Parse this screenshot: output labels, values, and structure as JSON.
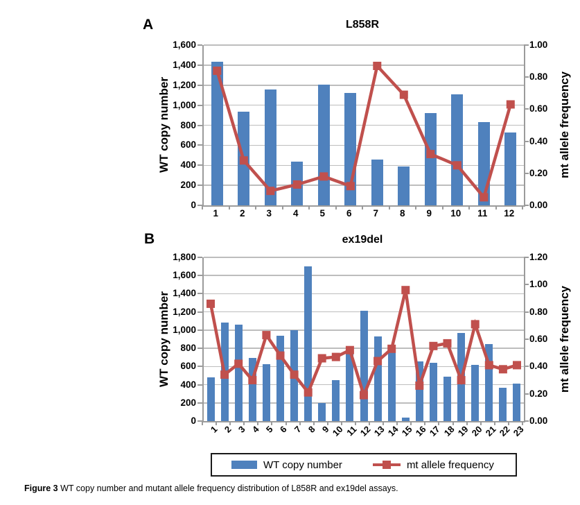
{
  "colors": {
    "bar": "#4F81BD",
    "line": "#C0504D",
    "grid": "#BDBDBD",
    "axis": "#9B9B9B"
  },
  "legend": {
    "bar_label": "WT copy number",
    "line_label": "mt allele frequency"
  },
  "caption": {
    "label": "Figure 3",
    "text": "WT copy number and mutant allele frequency distribution of L858R and ex19del assays."
  },
  "chart_data": [
    {
      "type": "bar+line",
      "panel": "A",
      "title": "L858R",
      "categories": [
        "1",
        "2",
        "3",
        "4",
        "5",
        "6",
        "7",
        "8",
        "9",
        "10",
        "11",
        "12"
      ],
      "left_axis": {
        "label": "WT copy number",
        "min": 0,
        "max": 1600,
        "step": 200
      },
      "right_axis": {
        "label": "mt allele frequency",
        "min": 0,
        "max": 1.0,
        "step": 0.2,
        "decimals": 2
      },
      "x_labels_rotated": false,
      "grid": true,
      "series": [
        {
          "name": "WT copy number",
          "type": "bar",
          "axis": "left",
          "values": [
            1435,
            935,
            1155,
            435,
            1205,
            1120,
            460,
            390,
            920,
            1110,
            830,
            725
          ]
        },
        {
          "name": "mt allele frequency",
          "type": "line",
          "axis": "right",
          "values": [
            0.84,
            0.28,
            0.09,
            0.13,
            0.18,
            0.12,
            0.87,
            0.69,
            0.32,
            0.25,
            0.05,
            0.63
          ]
        }
      ]
    },
    {
      "type": "bar+line",
      "panel": "B",
      "title": "ex19del",
      "categories": [
        "1",
        "2",
        "3",
        "4",
        "5",
        "6",
        "7",
        "8",
        "9",
        "10",
        "11",
        "12",
        "13",
        "14",
        "15",
        "16",
        "17",
        "18",
        "19",
        "20",
        "21",
        "22",
        "23"
      ],
      "left_axis": {
        "label": "WT copy number",
        "min": 0,
        "max": 1800,
        "step": 200
      },
      "right_axis": {
        "label": "mt allele frequency",
        "min": 0,
        "max": 1.2,
        "step": 0.2,
        "decimals": 2
      },
      "x_labels_rotated": true,
      "grid": true,
      "series": [
        {
          "name": "WT copy number",
          "type": "bar",
          "axis": "left",
          "values": [
            480,
            1080,
            1060,
            695,
            625,
            940,
            1000,
            1700,
            200,
            450,
            740,
            1215,
            930,
            760,
            40,
            655,
            640,
            490,
            970,
            615,
            850,
            370,
            410
          ]
        },
        {
          "name": "mt allele frequency",
          "type": "line",
          "axis": "right",
          "values": [
            0.86,
            0.34,
            0.42,
            0.3,
            0.63,
            0.48,
            0.34,
            0.21,
            0.46,
            0.47,
            0.52,
            0.19,
            0.44,
            0.53,
            0.96,
            0.26,
            0.55,
            0.57,
            0.3,
            0.71,
            0.41,
            0.38,
            0.41
          ]
        }
      ]
    }
  ]
}
